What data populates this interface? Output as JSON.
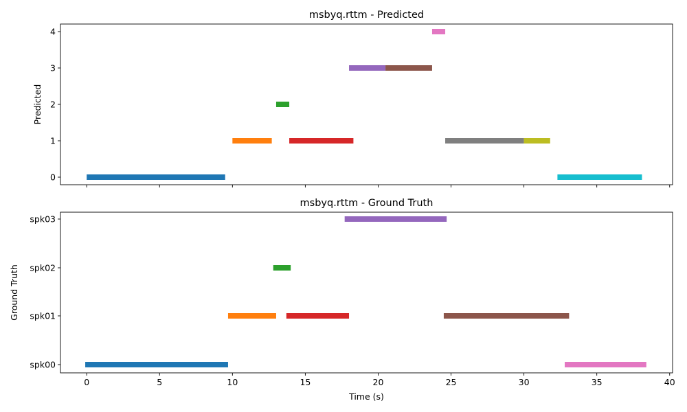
{
  "chart_data": [
    {
      "type": "timeline",
      "title": "msbyq.rttm - Predicted",
      "xlabel": "",
      "ylabel": "Predicted",
      "xlim": [
        -1.8,
        40.2
      ],
      "xticks": [
        0,
        5,
        10,
        15,
        20,
        25,
        30,
        35,
        40
      ],
      "show_xtick_labels": false,
      "categories": [
        "0",
        "1",
        "2",
        "3",
        "4"
      ],
      "segments": [
        {
          "row": "0",
          "start": 0.0,
          "end": 9.5,
          "color": "#1f77b4"
        },
        {
          "row": "1",
          "start": 10.0,
          "end": 12.7,
          "color": "#ff7f0e"
        },
        {
          "row": "2",
          "start": 13.0,
          "end": 13.9,
          "color": "#2ca02c"
        },
        {
          "row": "1",
          "start": 13.9,
          "end": 18.3,
          "color": "#d62728"
        },
        {
          "row": "3",
          "start": 18.0,
          "end": 20.5,
          "color": "#9467bd"
        },
        {
          "row": "3",
          "start": 20.5,
          "end": 23.7,
          "color": "#8c564b"
        },
        {
          "row": "4",
          "start": 23.7,
          "end": 24.6,
          "color": "#e377c2"
        },
        {
          "row": "1",
          "start": 24.6,
          "end": 30.0,
          "color": "#7f7f7f"
        },
        {
          "row": "1",
          "start": 30.0,
          "end": 31.8,
          "color": "#bcbd22"
        },
        {
          "row": "0",
          "start": 32.3,
          "end": 38.1,
          "color": "#17becf"
        }
      ]
    },
    {
      "type": "timeline",
      "title": "msbyq.rttm - Ground Truth",
      "xlabel": "Time (s)",
      "ylabel": "Ground Truth",
      "xlim": [
        -1.8,
        40.2
      ],
      "xticks": [
        0,
        5,
        10,
        15,
        20,
        25,
        30,
        35,
        40
      ],
      "show_xtick_labels": true,
      "categories": [
        "spk00",
        "spk01",
        "spk02",
        "spk03"
      ],
      "segments": [
        {
          "row": "spk00",
          "start": -0.1,
          "end": 9.7,
          "color": "#1f77b4"
        },
        {
          "row": "spk01",
          "start": 9.7,
          "end": 13.0,
          "color": "#ff7f0e"
        },
        {
          "row": "spk02",
          "start": 12.8,
          "end": 14.0,
          "color": "#2ca02c"
        },
        {
          "row": "spk01",
          "start": 13.7,
          "end": 18.0,
          "color": "#d62728"
        },
        {
          "row": "spk03",
          "start": 17.7,
          "end": 24.7,
          "color": "#9467bd"
        },
        {
          "row": "spk01",
          "start": 24.5,
          "end": 33.1,
          "color": "#8c564b"
        },
        {
          "row": "spk00",
          "start": 32.8,
          "end": 38.4,
          "color": "#e377c2"
        }
      ]
    }
  ]
}
